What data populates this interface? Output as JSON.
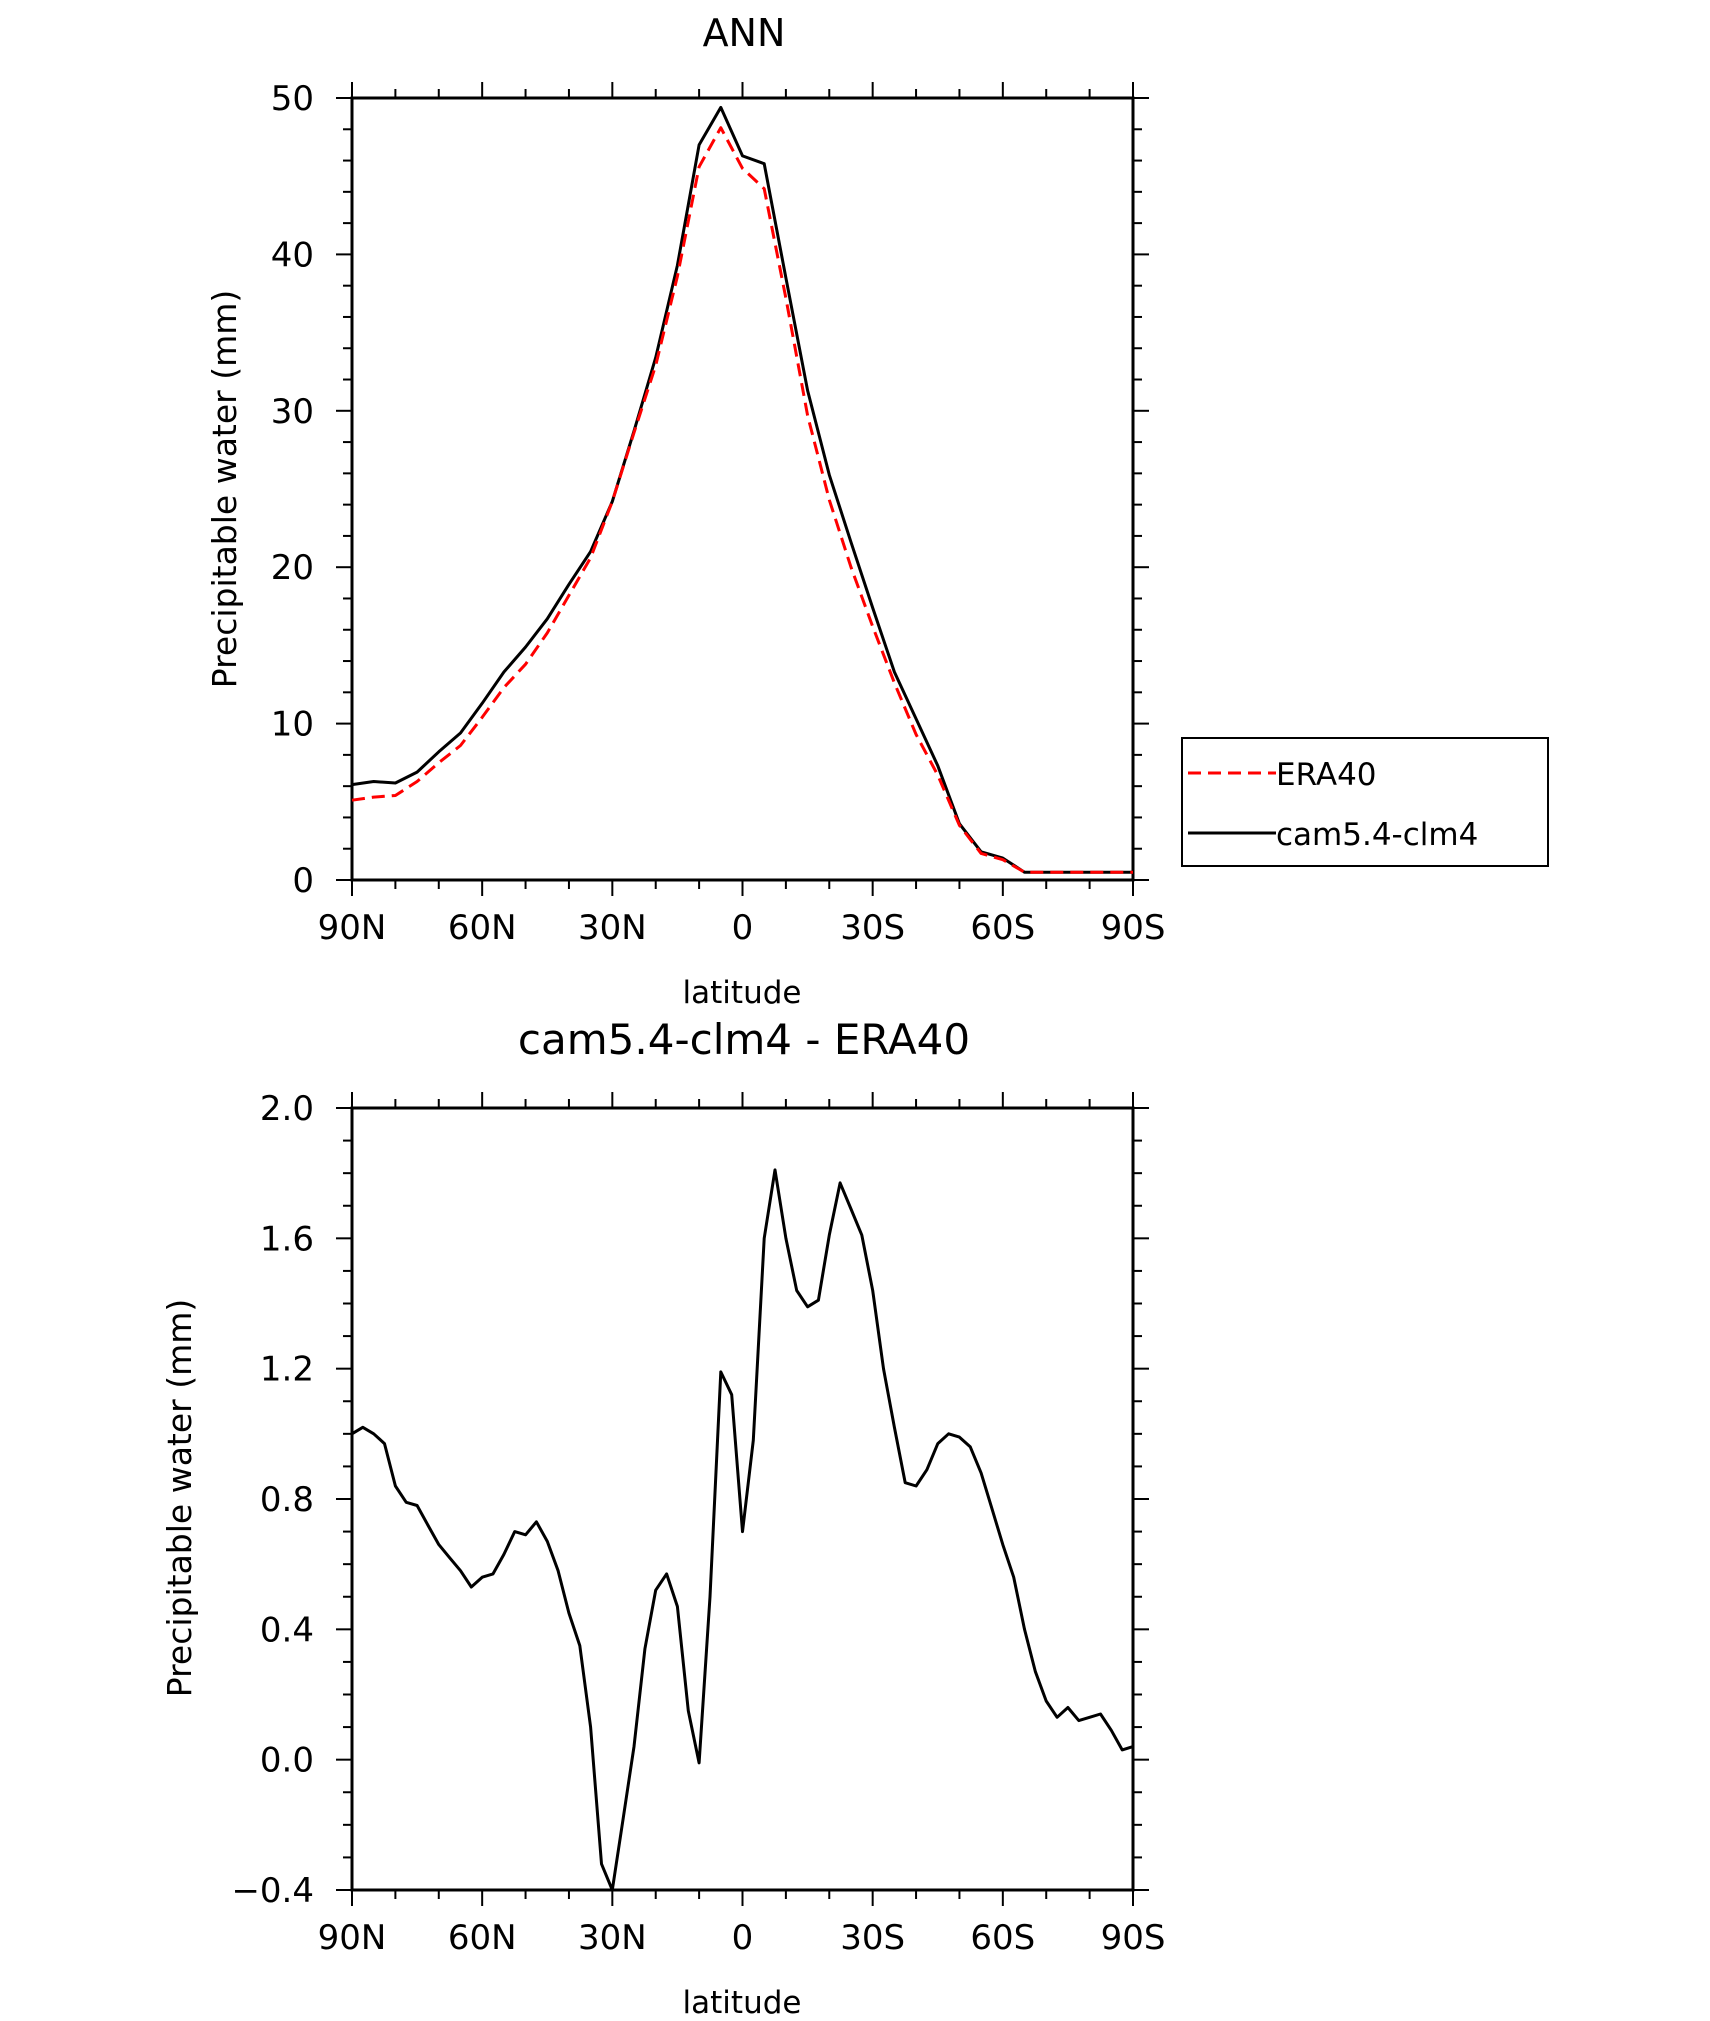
{
  "chart_data": [
    {
      "type": "line",
      "title": "ANN",
      "xlabel": "latitude",
      "ylabel": "Precipitable water (mm)",
      "xlim": [
        90,
        -90
      ],
      "ylim": [
        0,
        50
      ],
      "x_ticks": [
        90,
        60,
        30,
        0,
        -30,
        -60,
        -90
      ],
      "x_tick_labels": [
        "90N",
        "60N",
        "30N",
        "0",
        "30S",
        "60S",
        "90S"
      ],
      "y_ticks": [
        0,
        10,
        20,
        30,
        40,
        50
      ],
      "y_tick_labels": [
        "0",
        "10",
        "20",
        "30",
        "40",
        "50"
      ],
      "legend_position": "right",
      "grid": false,
      "series": [
        {
          "name": "ERA40",
          "color": "#ff0000",
          "style": "dashed",
          "x": [
            90,
            85,
            80,
            75,
            70,
            65,
            60,
            55,
            50,
            45,
            40,
            35,
            30,
            25,
            20,
            15,
            10,
            5,
            0,
            -5,
            -10,
            -15,
            -20,
            -25,
            -30,
            -35,
            -40,
            -45,
            -50,
            -55,
            -60,
            -65,
            -70,
            -75,
            -80,
            -85,
            -90
          ],
          "values": [
            5.1,
            5.3,
            5.4,
            6.3,
            7.5,
            8.6,
            10.4,
            12.3,
            13.8,
            15.8,
            18.2,
            20.6,
            24.2,
            28.6,
            32.9,
            38.6,
            45.6,
            48.1,
            45.5,
            44.2,
            37.2,
            29.7,
            24.3,
            20.0,
            16.2,
            12.6,
            9.3,
            6.7,
            3.5,
            1.7,
            1.3,
            0.5,
            0.5,
            0.5,
            0.5,
            0.5,
            0.5
          ]
        },
        {
          "name": "cam5.4-clm4",
          "color": "#000000",
          "style": "solid",
          "x": [
            90,
            85,
            80,
            75,
            70,
            65,
            60,
            55,
            50,
            45,
            40,
            35,
            30,
            25,
            20,
            15,
            10,
            5,
            0,
            -5,
            -10,
            -15,
            -20,
            -25,
            -30,
            -35,
            -40,
            -45,
            -50,
            -55,
            -60,
            -65,
            -70,
            -75,
            -80,
            -85,
            -90
          ],
          "values": [
            6.1,
            6.3,
            6.2,
            6.9,
            8.2,
            9.4,
            11.3,
            13.3,
            14.9,
            16.7,
            18.9,
            21.0,
            24.2,
            28.7,
            33.4,
            39.3,
            47.0,
            49.4,
            46.3,
            45.8,
            38.5,
            31.3,
            25.9,
            21.6,
            17.4,
            13.3,
            10.3,
            7.3,
            3.6,
            1.8,
            1.4,
            0.5,
            0.5,
            0.5,
            0.5,
            0.5,
            0.5
          ]
        }
      ]
    },
    {
      "type": "line",
      "title": "cam5.4-clm4 - ERA40",
      "xlabel": "latitude",
      "ylabel": "Precipitable water (mm)",
      "xlim": [
        90,
        -90
      ],
      "ylim": [
        -0.4,
        2.0
      ],
      "x_ticks": [
        90,
        60,
        30,
        0,
        -30,
        -60,
        -90
      ],
      "x_tick_labels": [
        "90N",
        "60N",
        "30N",
        "0",
        "30S",
        "60S",
        "90S"
      ],
      "y_ticks": [
        -0.4,
        0.0,
        0.4,
        0.8,
        1.2,
        1.6,
        2.0
      ],
      "y_tick_labels": [
        "−0.4",
        "0.0",
        "0.4",
        "0.8",
        "1.2",
        "1.6",
        "2.0"
      ],
      "grid": false,
      "series": [
        {
          "color": "#000000",
          "style": "solid",
          "x": [
            90,
            87.5,
            85,
            82.5,
            80,
            77.5,
            75,
            72.5,
            70,
            67.5,
            65,
            62.5,
            60,
            57.5,
            55,
            52.5,
            50,
            47.5,
            45,
            42.5,
            40,
            37.5,
            35,
            32.5,
            30,
            27.5,
            25,
            22.5,
            20,
            17.5,
            15,
            12.5,
            10,
            7.5,
            5,
            2.5,
            0,
            -2.5,
            -5,
            -7.5,
            -10,
            -12.5,
            -15,
            -17.5,
            -20,
            -22.5,
            -25,
            -27.5,
            -30,
            -32.5,
            -35,
            -37.5,
            -40,
            -42.5,
            -45,
            -47.5,
            -50,
            -52.5,
            -55,
            -57.5,
            -60,
            -62.5,
            -65,
            -67.5,
            -70,
            -72.5,
            -75,
            -77.5,
            -80,
            -82.5,
            -85,
            -87.5,
            -90
          ],
          "values": [
            1.0,
            1.02,
            1.0,
            0.97,
            0.84,
            0.79,
            0.78,
            0.72,
            0.66,
            0.62,
            0.58,
            0.53,
            0.56,
            0.57,
            0.63,
            0.7,
            0.69,
            0.73,
            0.67,
            0.58,
            0.45,
            0.35,
            0.1,
            -0.32,
            -0.4,
            -0.18,
            0.04,
            0.34,
            0.52,
            0.57,
            0.47,
            0.15,
            -0.01,
            0.5,
            1.19,
            1.12,
            0.7,
            0.98,
            1.6,
            1.81,
            1.6,
            1.44,
            1.39,
            1.41,
            1.61,
            1.77,
            1.69,
            1.61,
            1.44,
            1.2,
            1.02,
            0.85,
            0.84,
            0.89,
            0.97,
            1.0,
            0.99,
            0.96,
            0.88,
            0.77,
            0.66,
            0.56,
            0.4,
            0.27,
            0.18,
            0.13,
            0.16,
            0.12,
            0.13,
            0.14,
            0.09,
            0.03,
            0.04
          ]
        }
      ]
    }
  ]
}
